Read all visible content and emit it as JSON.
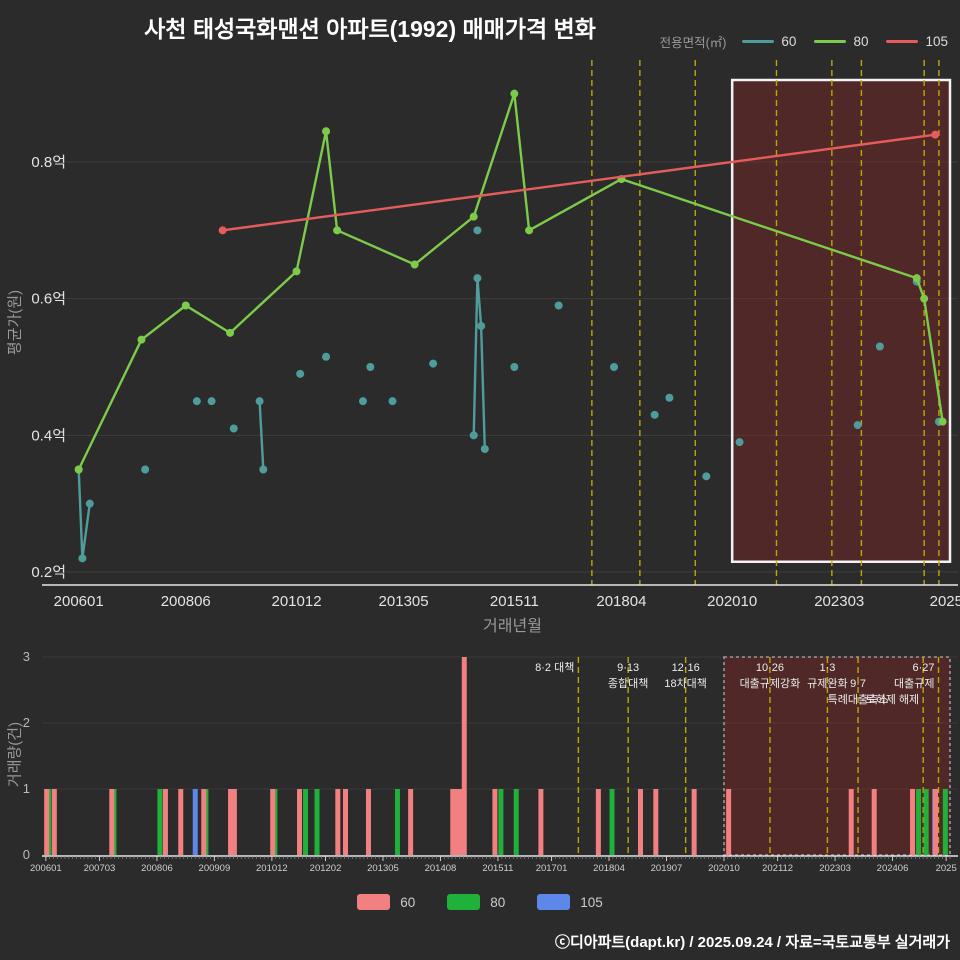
{
  "title": "사천 태성국화맨션 아파트(1992) 매매가격 변화",
  "top_legend": {
    "label": "전용면적(㎡)",
    "items": [
      {
        "label": "60",
        "color": "#4f9c9c"
      },
      {
        "label": "80",
        "color": "#7ccb4a"
      },
      {
        "label": "105",
        "color": "#e65c5c"
      }
    ]
  },
  "bottom_legend": [
    {
      "label": "60",
      "color": "#f28080"
    },
    {
      "label": "80",
      "color": "#1fb13a"
    },
    {
      "label": "105",
      "color": "#5d87e8"
    }
  ],
  "footer": "ⓒ디아파트(dapt.kr) / 2025.09.24 / 자료=국토교통부 실거래가",
  "chart_data": [
    {
      "type": "line",
      "title": "사천 태성국화맨션 아파트(1992) 매매가격 변화",
      "xlabel": "거래년월",
      "ylabel": "평균가(원)",
      "unit": "억원",
      "ylim": [
        0.18,
        0.95
      ],
      "grid": true,
      "legend_position": "top-right",
      "yticks": [
        {
          "label": "0.2억",
          "value": 0.2
        },
        {
          "label": "0.4억",
          "value": 0.4
        },
        {
          "label": "0.6억",
          "value": 0.6
        },
        {
          "label": "0.8억",
          "value": 0.8
        }
      ],
      "xrange": [
        "200512",
        "202509"
      ],
      "xticks": [
        {
          "label": "200601",
          "date": "200601"
        },
        {
          "label": "200806",
          "date": "200806"
        },
        {
          "label": "201012",
          "date": "201012"
        },
        {
          "label": "201305",
          "date": "201305"
        },
        {
          "label": "201511",
          "date": "201511"
        },
        {
          "label": "201804",
          "date": "201804"
        },
        {
          "label": "202010",
          "date": "202010"
        },
        {
          "label": "202303",
          "date": "202303"
        },
        {
          "label": "2025",
          "date": "202508"
        }
      ],
      "series": [
        {
          "name": "60",
          "color": "#4f9c9c",
          "segments": [
            [
              [
                "200601",
                0.35
              ],
              [
                "200602",
                0.22
              ],
              [
                "200604",
                0.3
              ]
            ],
            [
              [
                "200707",
                0.35
              ]
            ],
            [
              [
                "200809",
                0.45
              ]
            ],
            [
              [
                "200901",
                0.45
              ]
            ],
            [
              [
                "200907",
                0.41
              ]
            ],
            [
              [
                "201002",
                0.45
              ],
              [
                "201003",
                0.35
              ]
            ],
            [
              [
                "201101",
                0.49
              ]
            ],
            [
              [
                "201108",
                0.515
              ]
            ],
            [
              [
                "201206",
                0.45
              ]
            ],
            [
              [
                "201208",
                0.5
              ]
            ],
            [
              [
                "201302",
                0.45
              ]
            ],
            [
              [
                "201401",
                0.505
              ]
            ],
            [
              [
                "201412",
                0.4
              ],
              [
                "201501",
                0.63
              ],
              [
                "201502",
                0.56
              ],
              [
                "201503",
                0.38
              ]
            ],
            [
              [
                "201501",
                0.7
              ]
            ],
            [
              [
                "201511",
                0.5
              ]
            ],
            [
              [
                "201611",
                0.59
              ]
            ],
            [
              [
                "201802",
                0.5
              ]
            ],
            [
              [
                "201901",
                0.43
              ]
            ],
            [
              [
                "201905",
                0.455
              ]
            ],
            [
              [
                "202003",
                0.34
              ]
            ],
            [
              [
                "202012",
                0.39
              ]
            ],
            [
              [
                "202308",
                0.415
              ]
            ],
            [
              [
                "202402",
                0.53
              ]
            ],
            [
              [
                "202412",
                0.625
              ]
            ],
            [
              [
                "202506",
                0.42
              ]
            ]
          ]
        },
        {
          "name": "80",
          "color": "#7ccb4a",
          "segments": [
            [
              [
                "200601",
                0.35
              ],
              [
                "200706",
                0.54
              ],
              [
                "200806",
                0.59
              ],
              [
                "200906",
                0.55
              ],
              [
                "201012",
                0.64
              ],
              [
                "201108",
                0.845
              ],
              [
                "201111",
                0.7
              ],
              [
                "201308",
                0.65
              ],
              [
                "201412",
                0.72
              ],
              [
                "201511",
                0.9
              ],
              [
                "201603",
                0.7
              ],
              [
                "201804",
                0.775
              ],
              [
                "202412",
                0.63
              ],
              [
                "202502",
                0.6
              ],
              [
                "202507",
                0.42
              ]
            ]
          ]
        },
        {
          "name": "105",
          "color": "#e65c5c",
          "segments": [
            [
              [
                "200904",
                0.7
              ],
              [
                "202505",
                0.84
              ]
            ]
          ]
        }
      ],
      "event_lines": [
        "201708",
        "201809",
        "201912",
        "202110",
        "202301",
        "202309",
        "202502",
        "202506"
      ],
      "event_line_color": "#bfa700",
      "highlight": {
        "x0": "202010",
        "x1": "202509",
        "y0": 0.215,
        "y1": 0.92
      }
    },
    {
      "type": "bar",
      "ylabel": "거래량(건)",
      "ylim": [
        0,
        3
      ],
      "yticks": [
        0,
        1,
        2,
        3
      ],
      "xrange": [
        "200512",
        "202509"
      ],
      "xticks": [
        {
          "label": "200601",
          "date": "200601"
        },
        {
          "label": "200703",
          "date": "200703"
        },
        {
          "label": "200806",
          "date": "200806"
        },
        {
          "label": "200909",
          "date": "200909"
        },
        {
          "label": "201012",
          "date": "201012"
        },
        {
          "label": "201202",
          "date": "201202"
        },
        {
          "label": "201305",
          "date": "201305"
        },
        {
          "label": "201408",
          "date": "201408"
        },
        {
          "label": "201511",
          "date": "201511"
        },
        {
          "label": "201701",
          "date": "201701"
        },
        {
          "label": "201804",
          "date": "201804"
        },
        {
          "label": "201907",
          "date": "201907"
        },
        {
          "label": "202010",
          "date": "202010"
        },
        {
          "label": "202112",
          "date": "202112"
        },
        {
          "label": "202303",
          "date": "202303"
        },
        {
          "label": "202406",
          "date": "202406"
        },
        {
          "label": "2025",
          "date": "202508"
        }
      ],
      "bar_colors": {
        "60": "#f28080",
        "80": "#1fb13a",
        "105": "#5d87e8"
      },
      "bars": [
        [
          "200601",
          "80",
          1
        ],
        [
          "200602",
          "60",
          1
        ],
        [
          "200604",
          "60",
          1
        ],
        [
          "200706",
          "80",
          1
        ],
        [
          "200707",
          "60",
          1
        ],
        [
          "200806",
          "80",
          1
        ],
        [
          "200809",
          "60",
          1
        ],
        [
          "200901",
          "60",
          1
        ],
        [
          "200904",
          "105",
          1
        ],
        [
          "200906",
          "80",
          1
        ],
        [
          "200907",
          "60",
          1
        ],
        [
          "201002",
          "60",
          1
        ],
        [
          "201003",
          "60",
          1
        ],
        [
          "201012",
          "80",
          1
        ],
        [
          "201101",
          "60",
          1
        ],
        [
          "201108",
          "80",
          1
        ],
        [
          "201108",
          "60",
          1
        ],
        [
          "201111",
          "80",
          1
        ],
        [
          "201206",
          "60",
          1
        ],
        [
          "201208",
          "60",
          1
        ],
        [
          "201302",
          "60",
          1
        ],
        [
          "201308",
          "80",
          1
        ],
        [
          "201401",
          "60",
          1
        ],
        [
          "201412",
          "80",
          1
        ],
        [
          "201412",
          "60",
          1
        ],
        [
          "201501",
          "60",
          1
        ],
        [
          "201502",
          "60",
          1
        ],
        [
          "201503",
          "60",
          3
        ],
        [
          "201511",
          "80",
          1
        ],
        [
          "201511",
          "60",
          1
        ],
        [
          "201603",
          "80",
          1
        ],
        [
          "201611",
          "60",
          1
        ],
        [
          "201802",
          "60",
          1
        ],
        [
          "201804",
          "80",
          1
        ],
        [
          "201901",
          "60",
          1
        ],
        [
          "201905",
          "60",
          1
        ],
        [
          "202003",
          "60",
          1
        ],
        [
          "202012",
          "60",
          1
        ],
        [
          "202308",
          "60",
          1
        ],
        [
          "202402",
          "60",
          1
        ],
        [
          "202412",
          "80",
          1
        ],
        [
          "202412",
          "60",
          1
        ],
        [
          "202502",
          "80",
          1
        ],
        [
          "202505",
          "105",
          1
        ],
        [
          "202506",
          "60",
          1
        ],
        [
          "202507",
          "80",
          1
        ]
      ],
      "event_lines": [
        "201708",
        "201809",
        "201912",
        "202110",
        "202301",
        "202309",
        "202502",
        "202506"
      ],
      "event_line_color": "#bfa700",
      "highlight": {
        "x0": "202010",
        "x1": "202509"
      },
      "annotations": [
        {
          "text": "8·2 대책",
          "date": "201708",
          "row": 0,
          "align": "right"
        },
        {
          "text": "9·13",
          "date": "201809",
          "row": 0,
          "align": "center"
        },
        {
          "text": "종합대책",
          "date": "201809",
          "row": 1,
          "align": "center"
        },
        {
          "text": "12·16",
          "date": "201912",
          "row": 0,
          "align": "center"
        },
        {
          "text": "18차대책",
          "date": "201912",
          "row": 1,
          "align": "center"
        },
        {
          "text": "10·26",
          "date": "202110",
          "row": 0,
          "align": "center"
        },
        {
          "text": "대출규제강화",
          "date": "202110",
          "row": 1,
          "align": "center"
        },
        {
          "text": "1·3",
          "date": "202301",
          "row": 0,
          "align": "center"
        },
        {
          "text": "규제완화",
          "date": "202301",
          "row": 1,
          "align": "center"
        },
        {
          "text": "9·7",
          "date": "202309",
          "row": 1,
          "align": "center"
        },
        {
          "text": "특례대출축소",
          "date": "202309",
          "row": 2,
          "align": "center"
        },
        {
          "text": "토허제 해제",
          "date": "202502",
          "row": 2,
          "align": "right"
        },
        {
          "text": "6·27",
          "date": "202506",
          "row": 0,
          "align": "right"
        },
        {
          "text": "대출규제",
          "date": "202506",
          "row": 1,
          "align": "right"
        }
      ]
    }
  ]
}
